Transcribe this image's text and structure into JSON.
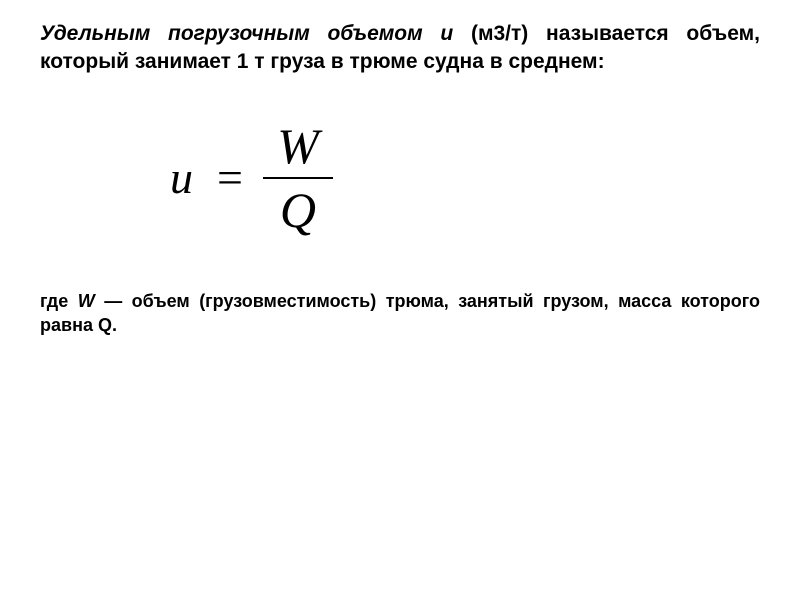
{
  "definition": {
    "term": "Удельным погрузочным объемом",
    "var": "u",
    "unit": "(м3/т)",
    "text_after": " называется объем, который занимает 1 т груза в трюме судна в среднем:"
  },
  "formula": {
    "lhs": "u",
    "eq": "=",
    "numerator": "W",
    "denominator": "Q"
  },
  "explanation": {
    "prefix": "где ",
    "var": "W",
    "text": " — объем (грузовместимость) трюма, занятый грузом, масса которого равна Q."
  },
  "styling": {
    "body_font": "Arial",
    "formula_font": "Times New Roman",
    "definition_fontsize": 21,
    "explanation_fontsize": 18,
    "formula_var_fontsize": 46,
    "fraction_fontsize": 50,
    "text_color": "#000000",
    "background_color": "#ffffff",
    "formula_margin_left": 130
  }
}
